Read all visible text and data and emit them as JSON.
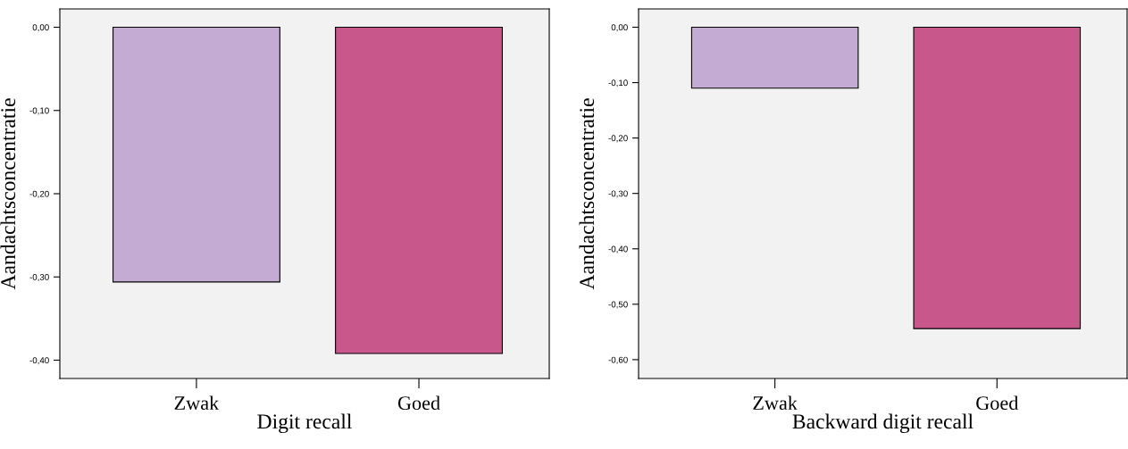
{
  "chart_data": [
    {
      "type": "bar",
      "categories": [
        "Zwak",
        "Goed"
      ],
      "values": [
        -0.306,
        -0.392
      ],
      "colors": [
        "#c3abd3",
        "#c8588c"
      ],
      "xlabel": "Digit recall",
      "ylabel": "Aandachtsconcentratie",
      "ylim": [
        -0.422,
        0.022
      ],
      "yticks": [
        {
          "value": 0,
          "label": "0,00"
        },
        {
          "value": -0.1,
          "label": "-0,10"
        },
        {
          "value": -0.2,
          "label": "-0,20"
        },
        {
          "value": -0.3,
          "label": "-0,30"
        },
        {
          "value": -0.4,
          "label": "-0,40"
        }
      ],
      "grid": false
    },
    {
      "type": "bar",
      "categories": [
        "Zwak",
        "Goed"
      ],
      "values": [
        -0.11,
        -0.544
      ],
      "colors": [
        "#c3abd3",
        "#c8588c"
      ],
      "xlabel": "Backward digit recall",
      "ylabel": "Aandachtsconcentratie",
      "ylim": [
        -0.634,
        0.033
      ],
      "yticks": [
        {
          "value": 0,
          "label": "0,00"
        },
        {
          "value": -0.1,
          "label": "-0,10"
        },
        {
          "value": -0.2,
          "label": "-0,20"
        },
        {
          "value": -0.3,
          "label": "-0,30"
        },
        {
          "value": -0.4,
          "label": "-0,40"
        },
        {
          "value": -0.5,
          "label": "-0,50"
        },
        {
          "value": -0.6,
          "label": "-0,60"
        }
      ],
      "grid": false
    }
  ]
}
